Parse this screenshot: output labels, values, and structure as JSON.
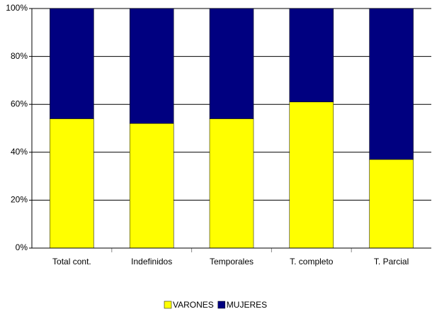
{
  "chart_data": {
    "type": "stacked_bar",
    "categories": [
      "Total cont.",
      "Indefinidos",
      "Temporales",
      "T. completo",
      "T. Parcial"
    ],
    "series": [
      {
        "name": "VARONES",
        "color": "#ffff00",
        "values": [
          54,
          52,
          54,
          61,
          37
        ]
      },
      {
        "name": "MUJERES",
        "color": "#000080",
        "values": [
          46,
          48,
          46,
          39,
          63
        ]
      }
    ],
    "ylim": [
      0,
      100
    ],
    "yticks": [
      {
        "value": 0,
        "label": "0%"
      },
      {
        "value": 20,
        "label": "20%"
      },
      {
        "value": 40,
        "label": "40%"
      },
      {
        "value": 60,
        "label": "60%"
      },
      {
        "value": 80,
        "label": "80%"
      },
      {
        "value": 100,
        "label": "100%"
      }
    ],
    "grid": true,
    "legend": "bottom"
  }
}
